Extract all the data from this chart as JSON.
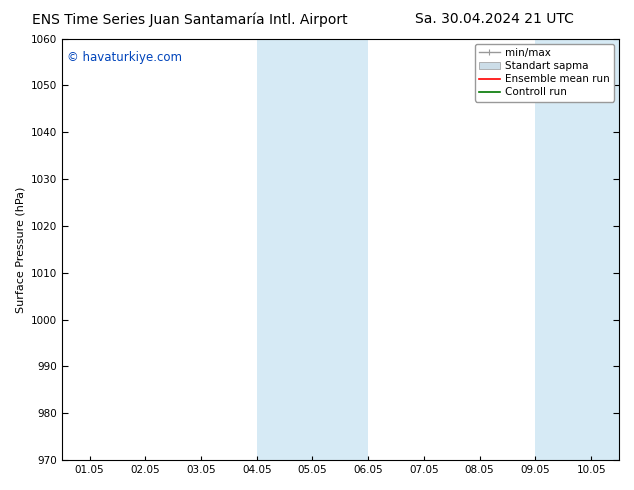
{
  "title_left": "ENS Time Series Juan Santamaría Intl. Airport",
  "title_right": "Sa. 30.04.2024 21 UTC",
  "ylabel": "Surface Pressure (hPa)",
  "ylim": [
    970,
    1060
  ],
  "yticks": [
    970,
    980,
    990,
    1000,
    1010,
    1020,
    1030,
    1040,
    1050,
    1060
  ],
  "xtick_labels": [
    "01.05",
    "02.05",
    "03.05",
    "04.05",
    "05.05",
    "06.05",
    "07.05",
    "08.05",
    "09.05",
    "10.05"
  ],
  "watermark": "© havaturkiye.com",
  "watermark_color": "#0044bb",
  "background_color": "#ffffff",
  "plot_bg_color": "#ffffff",
  "shaded_regions": [
    {
      "xstart": 3.0,
      "xend": 5.0,
      "color": "#d6eaf5"
    },
    {
      "xstart": 8.0,
      "xend": 9.5,
      "color": "#d6eaf5"
    }
  ],
  "legend_entries": [
    {
      "label": "min/max",
      "color": "#999999",
      "linewidth": 1.0,
      "linestyle": "-"
    },
    {
      "label": "Standart sapma",
      "color": "#ccdde8",
      "linewidth": 5,
      "linestyle": "-"
    },
    {
      "label": "Ensemble mean run",
      "color": "#ff0000",
      "linewidth": 1.2,
      "linestyle": "-"
    },
    {
      "label": "Controll run",
      "color": "#007700",
      "linewidth": 1.2,
      "linestyle": "-"
    }
  ],
  "title_fontsize": 10,
  "tick_fontsize": 7.5,
  "ylabel_fontsize": 8,
  "watermark_fontsize": 8.5,
  "legend_fontsize": 7.5
}
